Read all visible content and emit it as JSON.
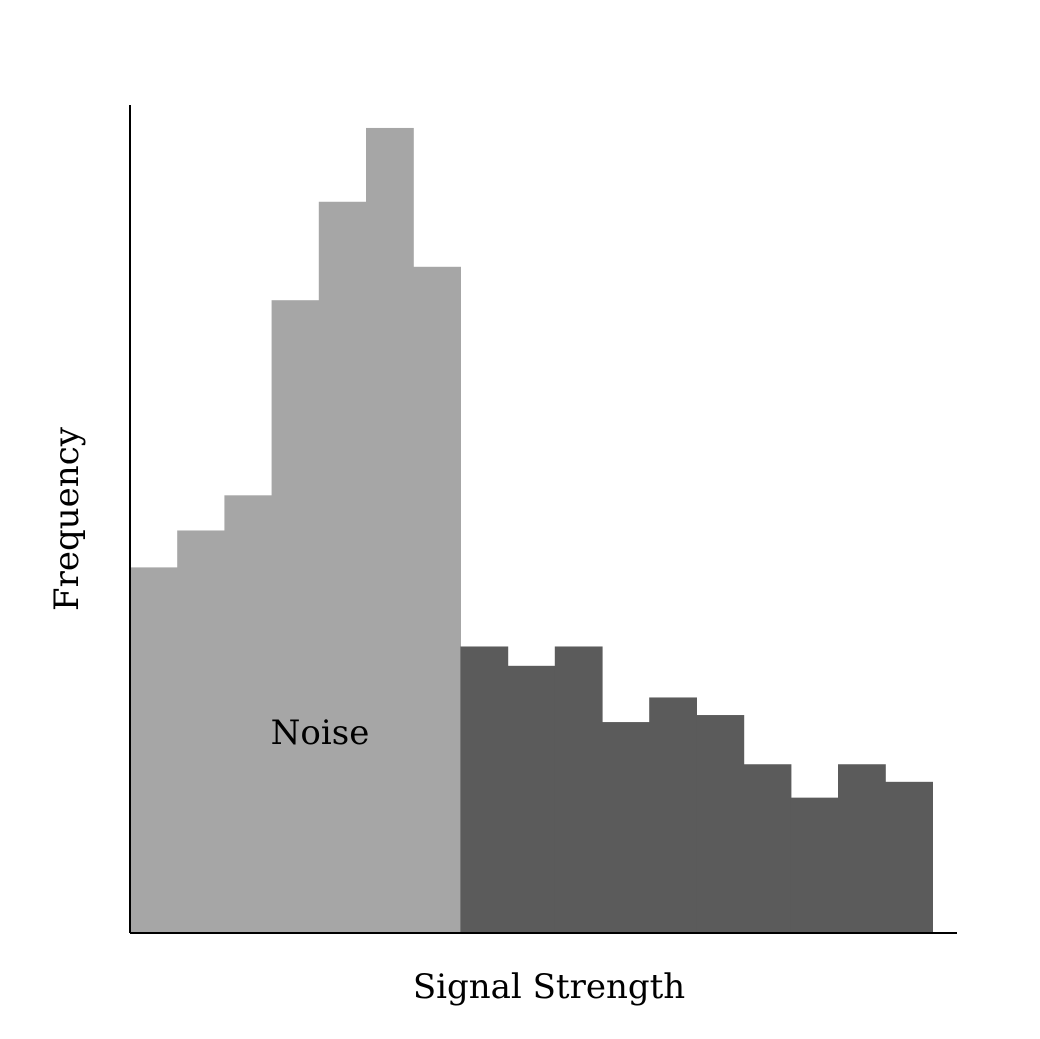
{
  "chart_data": {
    "type": "bar",
    "xlabel": "Signal Strength",
    "ylabel": "Frequency",
    "ylim": [
      0,
      45
    ],
    "grid": false,
    "ticks_visible": false,
    "values": [
      20.8,
      22.9,
      24.9,
      36.0,
      41.6,
      45.8,
      37.9,
      16.3,
      15.2,
      16.3,
      12.0,
      13.4,
      12.4,
      9.6,
      7.7,
      9.6,
      8.6
    ],
    "series": [
      {
        "name": "Noise",
        "start": 0,
        "end": 7,
        "color": "#a6a6a6"
      },
      {
        "start": 7,
        "end": 17,
        "color": "#5b5b5b"
      }
    ],
    "annotations": [
      {
        "text": "Noise",
        "series": 0
      }
    ]
  }
}
